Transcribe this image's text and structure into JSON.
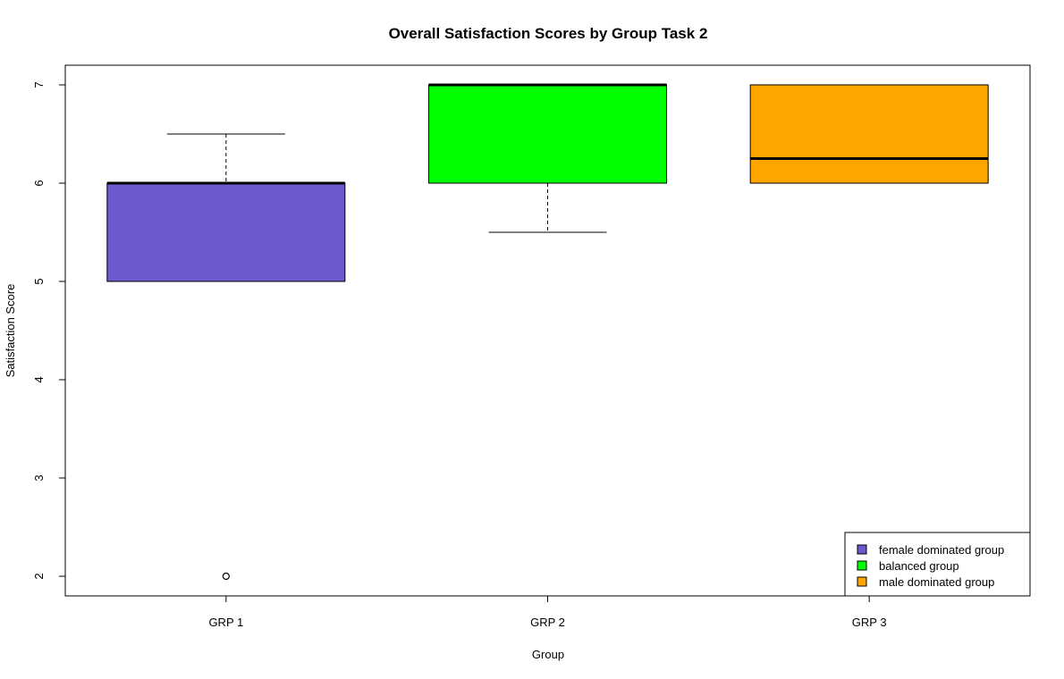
{
  "chart_data": {
    "type": "boxplot",
    "title": "Overall Satisfaction Scores by Group Task 2",
    "xlabel": "Group",
    "ylabel": "Satisfaction Score",
    "categories": [
      "GRP 1",
      "GRP 2",
      "GRP 3"
    ],
    "ylim": [
      1.8,
      7.2
    ],
    "yticks": [
      2,
      3,
      4,
      5,
      6,
      7
    ],
    "grid": false,
    "boxes": [
      {
        "category": "GRP 1",
        "whisker_low": 5,
        "q1": 5,
        "median": 6,
        "q3": 6,
        "whisker_high": 6.5,
        "outliers": [
          2
        ],
        "color": "#6A5ACD"
      },
      {
        "category": "GRP 2",
        "whisker_low": 5.5,
        "q1": 6,
        "median": 7,
        "q3": 7,
        "whisker_high": 7,
        "outliers": [],
        "color": "#00FF00"
      },
      {
        "category": "GRP 3",
        "whisker_low": 6,
        "q1": 6,
        "median": 6.25,
        "q3": 7,
        "whisker_high": 7,
        "outliers": [],
        "color": "#FFA500"
      }
    ],
    "legend": {
      "placement": "bottom-right",
      "entries": [
        {
          "label": "female dominated group",
          "color": "#6A5ACD"
        },
        {
          "label": "balanced group",
          "color": "#00FF00"
        },
        {
          "label": "male dominated group",
          "color": "#FFA500"
        }
      ]
    }
  }
}
